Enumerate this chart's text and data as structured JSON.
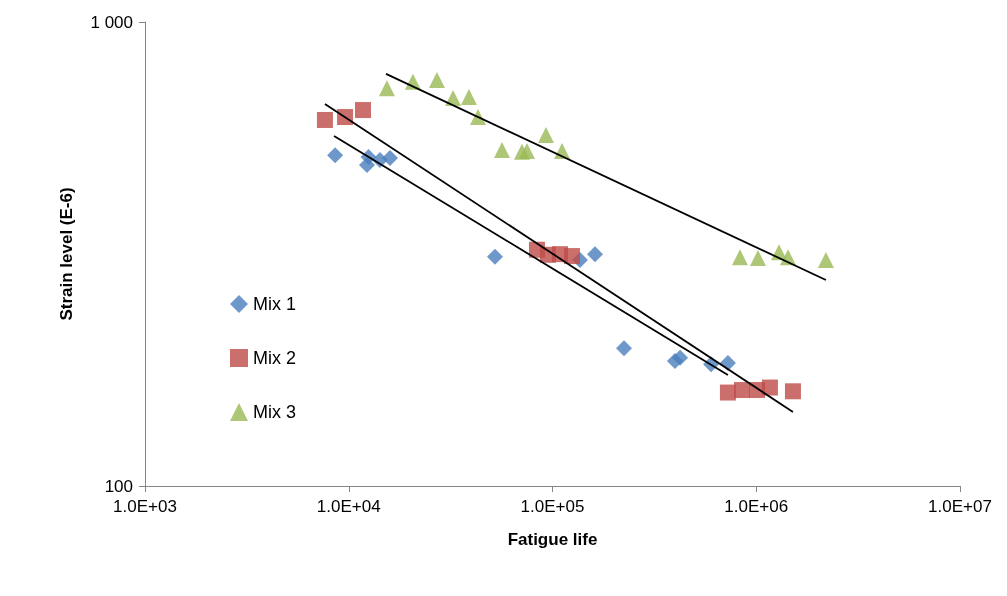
{
  "chart_data": {
    "type": "scatter",
    "xlabel": "Fatigue life",
    "ylabel": "Strain level (E-6)",
    "log": "xy",
    "grid": false,
    "legend": "left",
    "xlim": [
      1000,
      10000000
    ],
    "xticks": [
      {
        "value": 1000,
        "label": "1.0E+03"
      },
      {
        "value": 10000,
        "label": "1.0E+04"
      },
      {
        "value": 100000,
        "label": "1.0E+05"
      },
      {
        "value": 1000000,
        "label": "1.0E+06"
      },
      {
        "value": 10000000,
        "label": "1.0E+07"
      }
    ],
    "ylim": [
      100,
      1000
    ],
    "yticks": [
      100,
      {
        "value": 1000,
        "label": "1 000"
      }
    ],
    "series": [
      {
        "name": "Mix 1",
        "color": "#4a7ebb",
        "marker": "diamond",
        "x": [
          8570,
          12290,
          12500,
          14230,
          15940,
          52200,
          102900,
          136400,
          161700,
          224300,
          399000,
          422700,
          600000,
          726000
        ],
        "values": [
          516,
          492,
          512,
          504,
          509,
          312,
          null,
          307,
          316,
          198,
          186,
          189,
          183,
          184
        ]
      },
      {
        "name": "Mix 2",
        "color": "#be4b48",
        "marker": "square",
        "x": [
          7640,
          9590,
          11750,
          83900,
          95000,
          108800,
          124600,
          726000,
          851000,
          1009000,
          1167000,
          1514000
        ],
        "values": [
          615,
          624,
          646,
          323,
          315,
          316,
          313,
          159,
          161,
          161,
          163,
          160
        ]
      },
      {
        "name": "Mix 3",
        "color": "#98b954",
        "marker": "triangle",
        "x": [
          15400,
          20660,
          27100,
          32500,
          38900,
          43100,
          56500,
          70800,
          74900,
          92900,
          111400,
          832000,
          1020000,
          1293000,
          1432000,
          2198000
        ],
        "values": [
          720,
          743,
          750,
          686,
          689,
          624,
          530,
          525,
          527,
          571,
          527,
          311,
          310,
          319,
          311,
          307
        ]
      },
      {
        "type": "line",
        "color": "#000000",
        "marker": "none",
        "line_style": "solid",
        "x": [
          8470,
          726000
        ],
        "values": [
          568,
          173.5
        ]
      },
      {
        "type": "line",
        "color": "#000000",
        "marker": "none",
        "line_style": "solid",
        "x": [
          7640,
          1514000
        ],
        "values": [
          666,
          144.4
        ]
      },
      {
        "type": "line",
        "color": "#000000",
        "marker": "none",
        "line_style": "solid",
        "x": [
          15240,
          2198000
        ],
        "values": [
          773,
          278
        ]
      }
    ]
  }
}
